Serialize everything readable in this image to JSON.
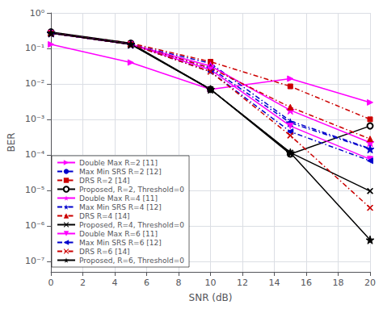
{
  "chart_data": {
    "type": "line",
    "xlabel": "SNR (dB)",
    "ylabel": "BER",
    "log": "y",
    "grid": true,
    "legend": "lower left",
    "x": [
      0,
      5,
      10,
      15,
      20
    ],
    "xlim": [
      0,
      20
    ],
    "xticks": [
      0,
      2,
      4,
      6,
      8,
      10,
      12,
      14,
      16,
      18,
      20
    ],
    "ylim": [
      5e-08,
      1.0
    ],
    "yticks": [
      {
        "value": 1e-07,
        "label": "10⁻⁷"
      },
      {
        "value": 1e-06,
        "label": "10⁻⁶"
      },
      {
        "value": 1e-05,
        "label": "10⁻⁵"
      },
      {
        "value": 0.0001,
        "label": "10⁻⁴"
      },
      {
        "value": 0.001,
        "label": "10⁻³"
      },
      {
        "value": 0.01,
        "label": "10⁻²"
      },
      {
        "value": 0.1,
        "label": "10⁻¹"
      },
      {
        "value": 1,
        "label": "10⁰"
      }
    ],
    "series": [
      {
        "name": "Double Max R=2 [11]",
        "color": "#ff00ff",
        "line_style": "solid",
        "marker": "triangle-right",
        "values": [
          0.13,
          0.04,
          0.007,
          0.014,
          0.003
        ]
      },
      {
        "name": "Max Min SRS R=2 [12]",
        "color": "#0000cc",
        "line_style": "dashdot",
        "marker": "none",
        "values": [
          0.27,
          0.13,
          0.038,
          0.0009,
          0.00015
        ]
      },
      {
        "name": "DRS R=2 [14]",
        "color": "#cc0000",
        "line_style": "dashdot",
        "marker": "square",
        "values": [
          0.28,
          0.14,
          0.042,
          0.0085,
          0.001
        ]
      },
      {
        "name": "Proposed, R=2, Threshold=0",
        "color": "#000000",
        "line_style": "solid",
        "marker": "circle-open",
        "values": [
          0.29,
          0.14,
          0.007,
          0.000105,
          0.00065
        ]
      },
      {
        "name": "Double Max R=4 [11]",
        "color": "#ff00ff",
        "line_style": "solid",
        "marker": "star",
        "values": [
          0.27,
          0.13,
          0.032,
          0.0018,
          0.00022
        ]
      },
      {
        "name": "Max Min SRS R=4 [12]",
        "color": "#0000cc",
        "line_style": "dashdot",
        "marker": "star",
        "values": [
          0.27,
          0.13,
          0.028,
          0.0008,
          0.000145
        ]
      },
      {
        "name": "DRS R=4 [14]",
        "color": "#cc0000",
        "line_style": "dashdot",
        "marker": "triangle-up",
        "values": [
          0.27,
          0.13,
          0.028,
          0.0022,
          0.00028
        ]
      },
      {
        "name": "Proposed, R=4, Threshold=0",
        "color": "#000000",
        "line_style": "solid",
        "marker": "x",
        "values": [
          0.27,
          0.13,
          0.007,
          0.000115,
          9.5e-06
        ]
      },
      {
        "name": "Double Max R=6 [11]",
        "color": "#ff00ff",
        "line_style": "solid",
        "marker": "triangle-down",
        "values": [
          0.27,
          0.13,
          0.025,
          0.00065,
          7.5e-05
        ]
      },
      {
        "name": "Max Min SRS R=6 [12]",
        "color": "#0000cc",
        "line_style": "dashdot",
        "marker": "triangle-left",
        "values": [
          0.27,
          0.13,
          0.022,
          0.00045,
          6.8e-05
        ]
      },
      {
        "name": "DRS R=6 [14]",
        "color": "#cc0000",
        "line_style": "dashdot",
        "marker": "x",
        "values": [
          0.27,
          0.13,
          0.022,
          0.00035,
          3.2e-06
        ]
      },
      {
        "name": "Proposed, R=6, Threshold=0",
        "color": "#000000",
        "line_style": "solid",
        "marker": "star",
        "values": [
          0.27,
          0.13,
          0.007,
          0.000115,
          4e-07
        ]
      }
    ]
  }
}
